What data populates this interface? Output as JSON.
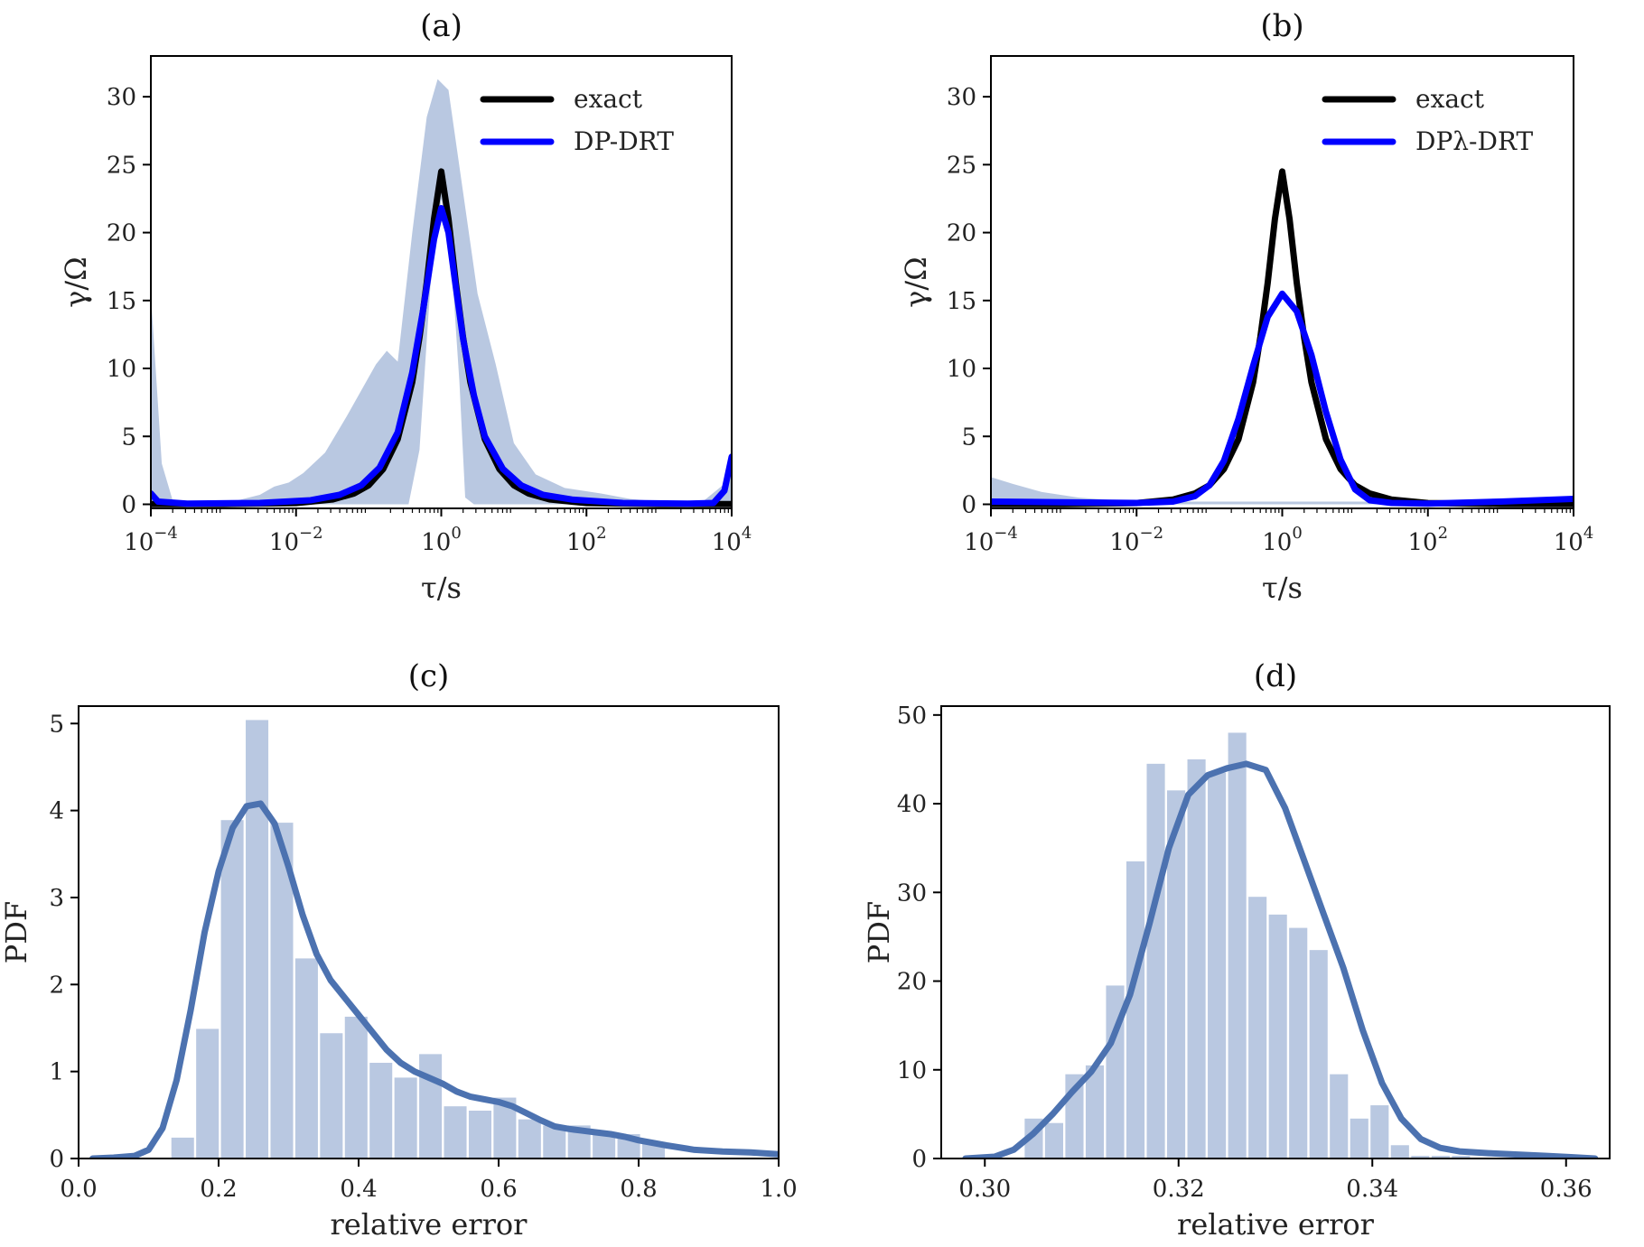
{
  "chart_data": [
    {
      "panel": "(a)",
      "type": "line",
      "title": "(a)",
      "xlabel": "τ/s",
      "ylabel": "γ/Ω",
      "xscale": "log",
      "xlim": [
        -4,
        4
      ],
      "ylim": [
        -0.3,
        33
      ],
      "xticks": [
        {
          "base": "10",
          "exp": "−4",
          "v": -4
        },
        {
          "base": "10",
          "exp": "−2",
          "v": -2
        },
        {
          "base": "10",
          "exp": "0",
          "v": 0
        },
        {
          "base": "10",
          "exp": "2",
          "v": 2
        },
        {
          "base": "10",
          "exp": "4",
          "v": 4
        }
      ],
      "yticks": [
        "0",
        "5",
        "10",
        "15",
        "20",
        "25",
        "30"
      ],
      "legend": {
        "position": "top-right",
        "entries": [
          "exact",
          "DP-DRT"
        ]
      },
      "band": {
        "color": "#b9c8e1",
        "upper": [
          [
            -4,
            15.5
          ],
          [
            -3.85,
            3
          ],
          [
            -3.7,
            0.3
          ],
          [
            -3.3,
            0.2
          ],
          [
            -2.8,
            0.3
          ],
          [
            -2.5,
            0.7
          ],
          [
            -2.3,
            1.3
          ],
          [
            -2.1,
            1.6
          ],
          [
            -1.9,
            2.3
          ],
          [
            -1.6,
            3.8
          ],
          [
            -1.3,
            6.5
          ],
          [
            -0.9,
            10.3
          ],
          [
            -0.75,
            11.3
          ],
          [
            -0.6,
            10.5
          ],
          [
            -0.4,
            20
          ],
          [
            -0.2,
            28.5
          ],
          [
            -0.05,
            31.3
          ],
          [
            0.1,
            30.5
          ],
          [
            0.3,
            23
          ],
          [
            0.5,
            15.5
          ],
          [
            0.75,
            10.3
          ],
          [
            1.0,
            4.5
          ],
          [
            1.3,
            2.2
          ],
          [
            1.7,
            1.2
          ],
          [
            2.2,
            0.8
          ],
          [
            2.6,
            0.4
          ],
          [
            3.0,
            0.2
          ],
          [
            3.6,
            0.2
          ],
          [
            3.9,
            1.5
          ],
          [
            4,
            3.3
          ]
        ],
        "lower": [
          [
            -4,
            0
          ],
          [
            -0.45,
            0
          ],
          [
            -0.3,
            4
          ],
          [
            -0.15,
            16
          ],
          [
            0,
            22.5
          ],
          [
            0.12,
            19.5
          ],
          [
            0.25,
            9
          ],
          [
            0.33,
            0.5
          ],
          [
            0.45,
            0
          ],
          [
            4,
            0
          ]
        ]
      },
      "series": [
        {
          "name": "exact",
          "color": "#000000",
          "points": [
            [
              -4,
              0.01
            ],
            [
              -3,
              0.02
            ],
            [
              -2,
              0.09
            ],
            [
              -1.5,
              0.35
            ],
            [
              -1.2,
              0.8
            ],
            [
              -1.0,
              1.4
            ],
            [
              -0.8,
              2.6
            ],
            [
              -0.6,
              4.8
            ],
            [
              -0.4,
              9
            ],
            [
              -0.3,
              12.3
            ],
            [
              -0.2,
              16.3
            ],
            [
              -0.1,
              21
            ],
            [
              0,
              24.5
            ],
            [
              0.1,
              21
            ],
            [
              0.2,
              16.3
            ],
            [
              0.3,
              12.3
            ],
            [
              0.4,
              9
            ],
            [
              0.6,
              4.8
            ],
            [
              0.8,
              2.6
            ],
            [
              1.0,
              1.4
            ],
            [
              1.2,
              0.8
            ],
            [
              1.5,
              0.35
            ],
            [
              2,
              0.09
            ],
            [
              3,
              0.02
            ],
            [
              4,
              0.01
            ]
          ]
        },
        {
          "name": "DP-DRT",
          "color": "#0000ff",
          "points": [
            [
              -4,
              0.8
            ],
            [
              -3.9,
              0.2
            ],
            [
              -3.5,
              0.05
            ],
            [
              -2.5,
              0.1
            ],
            [
              -1.8,
              0.3
            ],
            [
              -1.4,
              0.7
            ],
            [
              -1.1,
              1.4
            ],
            [
              -0.85,
              2.7
            ],
            [
              -0.6,
              5.3
            ],
            [
              -0.4,
              9.7
            ],
            [
              -0.25,
              14.3
            ],
            [
              -0.1,
              19.5
            ],
            [
              0,
              21.8
            ],
            [
              0.1,
              20
            ],
            [
              0.2,
              16
            ],
            [
              0.3,
              12.2
            ],
            [
              0.45,
              8
            ],
            [
              0.6,
              5
            ],
            [
              0.85,
              2.6
            ],
            [
              1.1,
              1.4
            ],
            [
              1.4,
              0.7
            ],
            [
              1.8,
              0.35
            ],
            [
              2.5,
              0.1
            ],
            [
              3.4,
              0.05
            ],
            [
              3.75,
              0.1
            ],
            [
              3.9,
              1.0
            ],
            [
              4,
              3.5
            ]
          ]
        }
      ]
    },
    {
      "panel": "(b)",
      "type": "line",
      "title": "(b)",
      "xlabel": "τ/s",
      "ylabel": "γ/Ω",
      "xscale": "log",
      "xlim": [
        -4,
        4
      ],
      "ylim": [
        -0.3,
        33
      ],
      "xticks": [
        {
          "base": "10",
          "exp": "−4",
          "v": -4
        },
        {
          "base": "10",
          "exp": "−2",
          "v": -2
        },
        {
          "base": "10",
          "exp": "0",
          "v": 0
        },
        {
          "base": "10",
          "exp": "2",
          "v": 2
        },
        {
          "base": "10",
          "exp": "4",
          "v": 4
        }
      ],
      "yticks": [
        "0",
        "5",
        "10",
        "15",
        "20",
        "25",
        "30"
      ],
      "legend": {
        "position": "top-right",
        "entries": [
          "exact",
          "DPλ-DRT"
        ]
      },
      "band": {
        "color": "#b9c8e1",
        "upper": [
          [
            -4,
            2
          ],
          [
            -3.7,
            1.5
          ],
          [
            -3.3,
            0.9
          ],
          [
            -2.8,
            0.5
          ],
          [
            -2.3,
            0.3
          ],
          [
            -2,
            0.2
          ],
          [
            -1.6,
            0.2
          ],
          [
            4,
            0.2
          ]
        ],
        "lower": [
          [
            -4,
            0
          ],
          [
            4,
            0
          ]
        ]
      },
      "series": [
        {
          "name": "exact",
          "color": "#000000",
          "points": [
            [
              -4,
              0.01
            ],
            [
              -3,
              0.02
            ],
            [
              -2,
              0.09
            ],
            [
              -1.5,
              0.35
            ],
            [
              -1.2,
              0.8
            ],
            [
              -1.0,
              1.4
            ],
            [
              -0.8,
              2.6
            ],
            [
              -0.6,
              4.8
            ],
            [
              -0.4,
              9
            ],
            [
              -0.3,
              12.3
            ],
            [
              -0.2,
              16.3
            ],
            [
              -0.1,
              21
            ],
            [
              0,
              24.5
            ],
            [
              0.1,
              21
            ],
            [
              0.2,
              16.3
            ],
            [
              0.3,
              12.3
            ],
            [
              0.4,
              9
            ],
            [
              0.6,
              4.8
            ],
            [
              0.8,
              2.6
            ],
            [
              1.0,
              1.4
            ],
            [
              1.2,
              0.8
            ],
            [
              1.5,
              0.35
            ],
            [
              2,
              0.09
            ],
            [
              3,
              0.02
            ],
            [
              4,
              0.01
            ]
          ]
        },
        {
          "name": "DPλ-DRT",
          "color": "#0000ff",
          "points": [
            [
              -4,
              0.2
            ],
            [
              -3,
              0.15
            ],
            [
              -2,
              0.1
            ],
            [
              -1.5,
              0.2
            ],
            [
              -1.2,
              0.6
            ],
            [
              -1,
              1.4
            ],
            [
              -0.8,
              3.2
            ],
            [
              -0.6,
              6.3
            ],
            [
              -0.4,
              10.2
            ],
            [
              -0.2,
              13.8
            ],
            [
              0,
              15.5
            ],
            [
              0.2,
              14.2
            ],
            [
              0.4,
              11
            ],
            [
              0.6,
              6.8
            ],
            [
              0.8,
              3.3
            ],
            [
              1.0,
              1.1
            ],
            [
              1.2,
              0.3
            ],
            [
              1.5,
              0.1
            ],
            [
              2,
              0.05
            ],
            [
              3,
              0.2
            ],
            [
              4,
              0.4
            ]
          ]
        }
      ]
    },
    {
      "panel": "(c)",
      "type": "bar",
      "title": "(c)",
      "xlabel": "relative error",
      "ylabel": "PDF",
      "xlim": [
        0.0,
        1.0
      ],
      "ylim": [
        0,
        5.2
      ],
      "xticks": [
        "0.0",
        "0.2",
        "0.4",
        "0.6",
        "0.8",
        "1.0"
      ],
      "yticks": [
        "0",
        "1",
        "2",
        "3",
        "4",
        "5"
      ],
      "bar_color": "#b9c8e1",
      "line_color": "#4c72b0",
      "bins": {
        "start": 0.131,
        "width": 0.0354,
        "values": [
          0.24,
          1.49,
          3.89,
          5.04,
          3.86,
          2.3,
          1.44,
          1.63,
          1.1,
          0.93,
          1.2,
          0.6,
          0.55,
          0.7,
          0.45,
          0.38,
          0.38,
          0.28,
          0.28,
          0.18
        ]
      },
      "kde": [
        [
          0.02,
          0.0
        ],
        [
          0.05,
          0.01
        ],
        [
          0.08,
          0.03
        ],
        [
          0.1,
          0.1
        ],
        [
          0.12,
          0.35
        ],
        [
          0.14,
          0.9
        ],
        [
          0.16,
          1.7
        ],
        [
          0.18,
          2.6
        ],
        [
          0.2,
          3.3
        ],
        [
          0.22,
          3.8
        ],
        [
          0.24,
          4.05
        ],
        [
          0.26,
          4.08
        ],
        [
          0.28,
          3.85
        ],
        [
          0.3,
          3.35
        ],
        [
          0.32,
          2.8
        ],
        [
          0.34,
          2.35
        ],
        [
          0.36,
          2.05
        ],
        [
          0.38,
          1.85
        ],
        [
          0.4,
          1.65
        ],
        [
          0.42,
          1.45
        ],
        [
          0.44,
          1.25
        ],
        [
          0.46,
          1.1
        ],
        [
          0.48,
          1.0
        ],
        [
          0.5,
          0.93
        ],
        [
          0.52,
          0.86
        ],
        [
          0.54,
          0.77
        ],
        [
          0.56,
          0.71
        ],
        [
          0.58,
          0.68
        ],
        [
          0.6,
          0.65
        ],
        [
          0.62,
          0.6
        ],
        [
          0.64,
          0.52
        ],
        [
          0.66,
          0.44
        ],
        [
          0.68,
          0.37
        ],
        [
          0.7,
          0.34
        ],
        [
          0.72,
          0.32
        ],
        [
          0.74,
          0.3
        ],
        [
          0.76,
          0.28
        ],
        [
          0.78,
          0.25
        ],
        [
          0.8,
          0.21
        ],
        [
          0.84,
          0.15
        ],
        [
          0.88,
          0.1
        ],
        [
          0.92,
          0.08
        ],
        [
          0.96,
          0.07
        ],
        [
          1.0,
          0.05
        ]
      ]
    },
    {
      "panel": "(d)",
      "type": "bar",
      "title": "(d)",
      "xlabel": "relative error",
      "ylabel": "PDF",
      "xlim": [
        0.2955,
        0.3645
      ],
      "ylim": [
        0,
        51
      ],
      "xticks": [
        "0.30",
        "0.32",
        "0.34",
        "0.36"
      ],
      "xtick_values": [
        0.3,
        0.32,
        0.34,
        0.36
      ],
      "yticks": [
        "0",
        "10",
        "20",
        "30",
        "40",
        "50"
      ],
      "bar_color": "#b9c8e1",
      "line_color": "#4c72b0",
      "bins": {
        "start": 0.304,
        "width": 0.0021,
        "values": [
          4.5,
          4.0,
          9.5,
          10.5,
          19.5,
          33.5,
          44.5,
          41.5,
          45.0,
          43.5,
          48.0,
          29.5,
          27.5,
          26.0,
          23.5,
          9.5,
          4.5,
          6.0,
          1.5,
          0.3,
          0.3,
          0.3
        ]
      },
      "kde": [
        [
          0.298,
          0.0
        ],
        [
          0.301,
          0.2
        ],
        [
          0.303,
          1.0
        ],
        [
          0.305,
          2.8
        ],
        [
          0.307,
          5.0
        ],
        [
          0.309,
          7.5
        ],
        [
          0.311,
          9.8
        ],
        [
          0.313,
          13.0
        ],
        [
          0.315,
          18.5
        ],
        [
          0.317,
          26.5
        ],
        [
          0.319,
          35.0
        ],
        [
          0.321,
          41.0
        ],
        [
          0.323,
          43.2
        ],
        [
          0.325,
          44.0
        ],
        [
          0.327,
          44.5
        ],
        [
          0.329,
          43.8
        ],
        [
          0.331,
          39.5
        ],
        [
          0.333,
          33.5
        ],
        [
          0.335,
          27.5
        ],
        [
          0.337,
          21.5
        ],
        [
          0.339,
          14.5
        ],
        [
          0.341,
          8.5
        ],
        [
          0.343,
          4.5
        ],
        [
          0.345,
          2.2
        ],
        [
          0.347,
          1.2
        ],
        [
          0.349,
          0.8
        ],
        [
          0.352,
          0.6
        ],
        [
          0.355,
          0.45
        ],
        [
          0.358,
          0.3
        ],
        [
          0.3605,
          0.15
        ],
        [
          0.363,
          0.0
        ]
      ]
    }
  ]
}
